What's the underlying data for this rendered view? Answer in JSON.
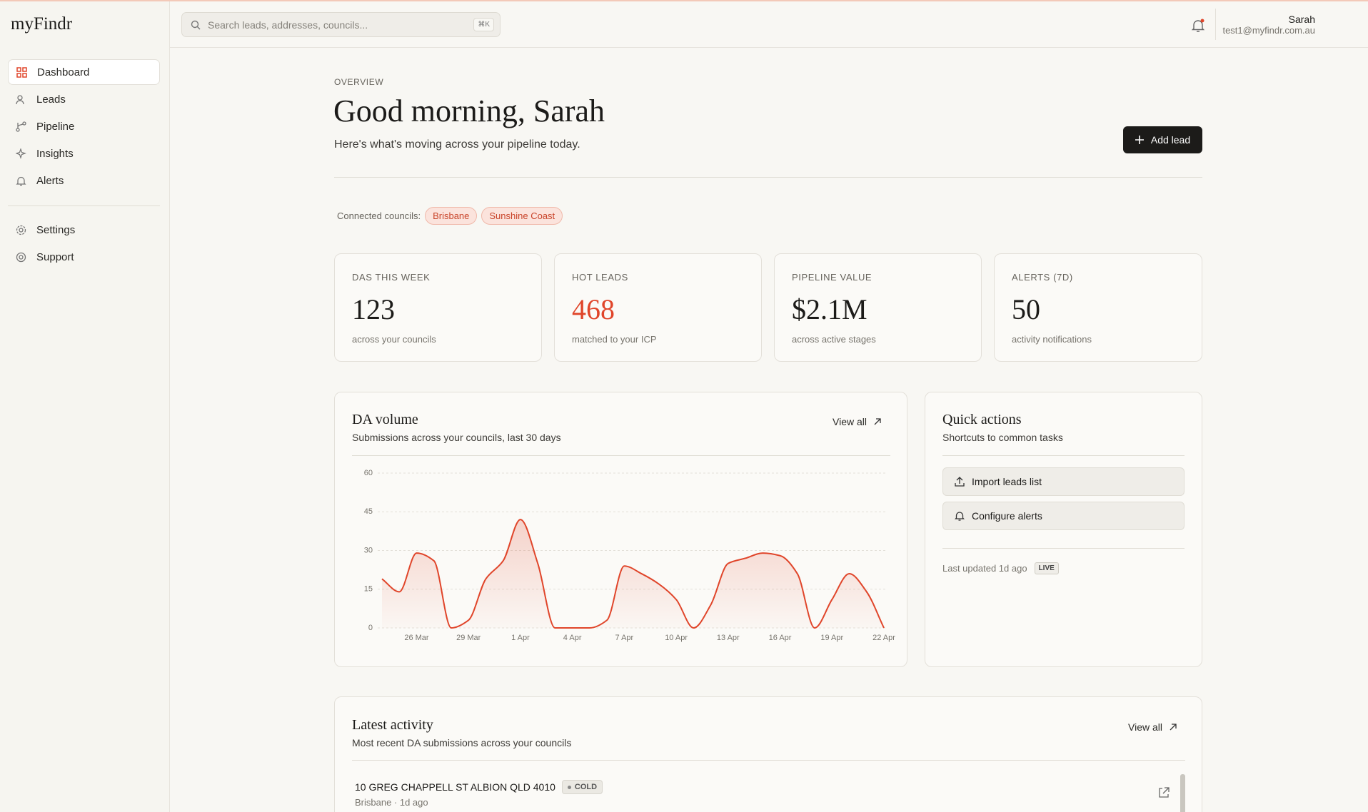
{
  "sidebar": {
    "logo": "myFindr",
    "nav": [
      "Dashboard",
      "Leads",
      "Pipeline",
      "Insights",
      "Alerts"
    ],
    "secondary": [
      "Settings",
      "Support"
    ]
  },
  "header": {
    "search_placeholder": "Search leads, addresses, councils...",
    "shortcut": "⌘K",
    "user_name": "Sarah",
    "user_email": "test1@myfindr.com.au"
  },
  "overview": {
    "eyebrow": "OVERVIEW",
    "title": "Good morning, Sarah",
    "subtitle": "Here's what's moving across your pipeline today.",
    "add_lead": "Add lead",
    "councils_label": "Connected councils:",
    "councils": [
      "Brisbane",
      "Sunshine Coast"
    ]
  },
  "stats": [
    {
      "label": "DAS THIS WEEK",
      "value": "123",
      "note": "across your councils"
    },
    {
      "label": "HOT LEADS",
      "value": "468",
      "note": "matched to your ICP"
    },
    {
      "label": "PIPELINE VALUE",
      "value": "$2.1M",
      "note": "across active stages"
    },
    {
      "label": "ALERTS (7D)",
      "value": "50",
      "note": "activity notifications"
    }
  ],
  "da_card": {
    "view_all": "View all"
  },
  "chart_data": {
    "type": "line",
    "title": "DA volume",
    "subtitle": "Submissions across your councils, last 30 days",
    "categories": [
      null,
      null,
      "26 Mar",
      null,
      null,
      "29 Mar",
      null,
      null,
      "1 Apr",
      null,
      null,
      "4 Apr",
      null,
      null,
      "7 Apr",
      null,
      null,
      "10 Apr",
      null,
      null,
      "13 Apr",
      null,
      null,
      "16 Apr",
      null,
      null,
      "19 Apr",
      null,
      null,
      "22 Apr"
    ],
    "values": [
      19,
      14,
      29,
      26,
      0,
      3,
      19,
      26,
      42,
      25,
      0,
      0,
      0,
      3,
      24,
      21,
      17,
      11,
      0,
      9,
      25,
      27,
      29,
      28,
      21,
      0,
      11,
      21,
      14,
      0
    ],
    "color": "#e0452a",
    "ylim": [
      0,
      60
    ],
    "yticks": [
      0,
      15,
      30,
      45,
      60
    ],
    "grid": true
  },
  "quick_actions": {
    "title": "Quick actions",
    "subtitle": "Shortcuts to common tasks",
    "actions": [
      "Import leads list",
      "Configure alerts"
    ],
    "updated": "Last updated 1d ago",
    "badge": "LIVE"
  },
  "activity": {
    "title": "Latest activity",
    "subtitle": "Most recent DA submissions across your councils",
    "view_all": "View all",
    "items": [
      {
        "address": "10 GREG CHAPPELL ST ALBION QLD 4010",
        "tag": "COLD",
        "meta": "Brisbane · 1d ago"
      }
    ]
  }
}
